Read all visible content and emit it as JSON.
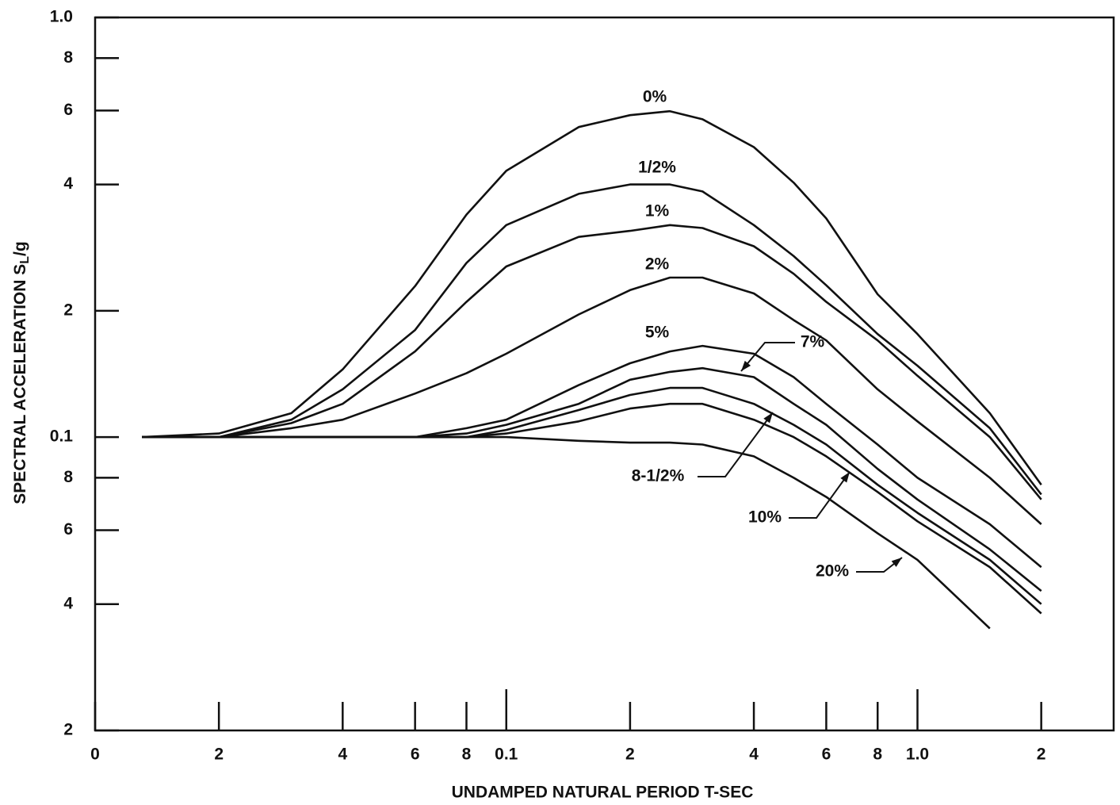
{
  "chart_data": {
    "type": "line",
    "x_label": "UNDAMPED NATURAL PERIOD T-SEC",
    "y_label": "SPECTRAL ACCELERATION S",
    "y_label_sub": "L",
    "y_label_tail": "/g",
    "log_x": true,
    "log_y": true,
    "color": "#111111",
    "xlim": [
      0.01,
      3.0
    ],
    "ylim": [
      0.02,
      1.0
    ],
    "xticks": [
      {
        "value": 0.01,
        "label": "0"
      },
      {
        "value": 0.02,
        "label": "2"
      },
      {
        "value": 0.04,
        "label": "4"
      },
      {
        "value": 0.06,
        "label": "6"
      },
      {
        "value": 0.08,
        "label": "8"
      },
      0.1,
      {
        "value": 0.2,
        "label": "2"
      },
      {
        "value": 0.4,
        "label": "4"
      },
      {
        "value": 0.6,
        "label": "6"
      },
      {
        "value": 0.8,
        "label": "8"
      },
      {
        "value": 1,
        "label": "1.0"
      },
      {
        "value": 2,
        "label": "2"
      }
    ],
    "yticks": [
      {
        "value": 1,
        "label": "1.0"
      },
      {
        "value": 0.8,
        "label": "8"
      },
      {
        "value": 0.6,
        "label": "6"
      },
      {
        "value": 0.4,
        "label": "4"
      },
      {
        "value": 0.2,
        "label": "2"
      },
      0.1,
      {
        "value": 0.08,
        "label": "8"
      },
      {
        "value": 0.06,
        "label": "6"
      },
      {
        "value": 0.04,
        "label": "4"
      },
      {
        "value": 0.02,
        "label": "2"
      }
    ],
    "x": [
      0.013,
      0.02,
      0.03,
      0.04,
      0.06,
      0.08,
      0.1,
      0.15,
      0.2,
      0.25,
      0.3,
      0.4,
      0.5,
      0.6,
      0.8,
      1.0,
      1.5,
      2.0
    ],
    "series": [
      {
        "name": "0%",
        "values": [
          0.1,
          0.102,
          0.114,
          0.145,
          0.229,
          0.339,
          0.431,
          0.548,
          0.585,
          0.598,
          0.572,
          0.491,
          0.404,
          0.332,
          0.219,
          0.176,
          0.114,
          0.077
        ]
      },
      {
        "name": "1/2%",
        "values": [
          0.1,
          0.1,
          0.11,
          0.13,
          0.18,
          0.26,
          0.32,
          0.38,
          0.4,
          0.4,
          0.385,
          0.32,
          0.27,
          0.23,
          0.176,
          0.148,
          0.105,
          0.073
        ]
      },
      {
        "name": "1%",
        "values": [
          0.1,
          0.1,
          0.108,
          0.12,
          0.16,
          0.21,
          0.255,
          0.3,
          0.31,
          0.32,
          0.315,
          0.285,
          0.245,
          0.21,
          0.17,
          0.14,
          0.1,
          0.071
        ]
      },
      {
        "name": "2%",
        "values": [
          0.1,
          0.1,
          0.105,
          0.11,
          0.127,
          0.142,
          0.158,
          0.196,
          0.224,
          0.24,
          0.24,
          0.22,
          0.19,
          0.17,
          0.13,
          0.109,
          0.08,
          0.062
        ]
      },
      {
        "name": "5%",
        "values": [
          0.1,
          0.1,
          0.1,
          0.1,
          0.1,
          0.105,
          0.11,
          0.133,
          0.15,
          0.16,
          0.165,
          0.158,
          0.139,
          0.12,
          0.096,
          0.08,
          0.062,
          0.049
        ]
      },
      {
        "name": "7%",
        "values": [
          0.1,
          0.1,
          0.1,
          0.1,
          0.1,
          0.102,
          0.107,
          0.12,
          0.137,
          0.143,
          0.146,
          0.139,
          0.12,
          0.107,
          0.084,
          0.071,
          0.054,
          0.043
        ]
      },
      {
        "name": "8-1/2%",
        "values": [
          0.1,
          0.1,
          0.1,
          0.1,
          0.1,
          0.1,
          0.104,
          0.116,
          0.126,
          0.131,
          0.131,
          0.12,
          0.107,
          0.096,
          0.077,
          0.066,
          0.051,
          0.04
        ]
      },
      {
        "name": "10%",
        "values": [
          0.1,
          0.1,
          0.1,
          0.1,
          0.1,
          0.1,
          0.102,
          0.109,
          0.117,
          0.12,
          0.12,
          0.11,
          0.1,
          0.09,
          0.074,
          0.063,
          0.049,
          0.038
        ]
      },
      {
        "name": "20%",
        "values": [
          0.1,
          0.1,
          0.1,
          0.1,
          0.1,
          0.1,
          0.1,
          0.098,
          0.097,
          0.097,
          0.096,
          0.09,
          0.08,
          0.072,
          0.059,
          0.051,
          0.035,
          null
        ]
      }
    ]
  }
}
